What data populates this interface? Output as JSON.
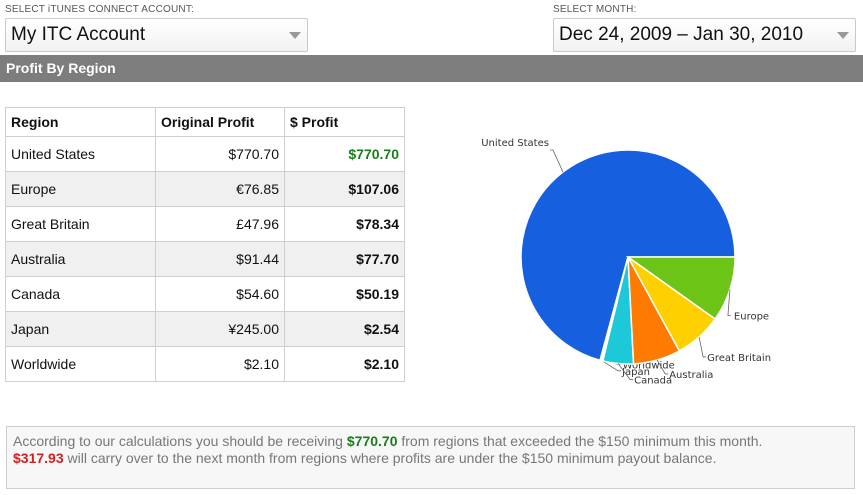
{
  "account_select": {
    "caption": "SELECT iTUNES CONNECT ACCOUNT:",
    "value": "My ITC Account"
  },
  "month_select": {
    "caption": "SELECT MONTH:",
    "value": "Dec 24, 2009 – Jan 30, 2010"
  },
  "section": {
    "title": "Profit By Region"
  },
  "table": {
    "headers": [
      "Region",
      "Original Profit",
      "$ Profit"
    ],
    "rows": [
      {
        "region": "United States",
        "original": "$770.70",
        "usd": "$770.70"
      },
      {
        "region": "Europe",
        "original": "€76.85",
        "usd": "$107.06"
      },
      {
        "region": "Great Britain",
        "original": "£47.96",
        "usd": "$78.34"
      },
      {
        "region": "Australia",
        "original": "$91.44",
        "usd": "$77.70"
      },
      {
        "region": "Canada",
        "original": "$54.60",
        "usd": "$50.19"
      },
      {
        "region": "Japan",
        "original": "¥245.00",
        "usd": "$2.54"
      },
      {
        "region": "Worldwide",
        "original": "$2.10",
        "usd": "$2.10"
      }
    ]
  },
  "chart_data": {
    "type": "pie",
    "slices": [
      {
        "label": "United States",
        "value": 770.7,
        "color": "#1660e0"
      },
      {
        "label": "Worldwide",
        "value": 2.1,
        "color": "#ffffff"
      },
      {
        "label": "Japan",
        "value": 2.54,
        "color": "#ffffff"
      },
      {
        "label": "Canada",
        "value": 50.19,
        "color": "#1dc8d8"
      },
      {
        "label": "Australia",
        "value": 77.7,
        "color": "#ff7a00"
      },
      {
        "label": "Great Britain",
        "value": 78.34,
        "color": "#ffd000"
      },
      {
        "label": "Europe",
        "value": 107.06,
        "color": "#6cc417"
      }
    ]
  },
  "summary": {
    "line1_prefix": "According to our calculations you should be receiving ",
    "line1_amount": "$770.70",
    "line1_suffix": " from regions that exceeded the $150 minimum this month.",
    "line2_amount": "$317.93",
    "line2_suffix": " will carry over to the next month from regions where profits are under the $150 minimum payout balance."
  }
}
